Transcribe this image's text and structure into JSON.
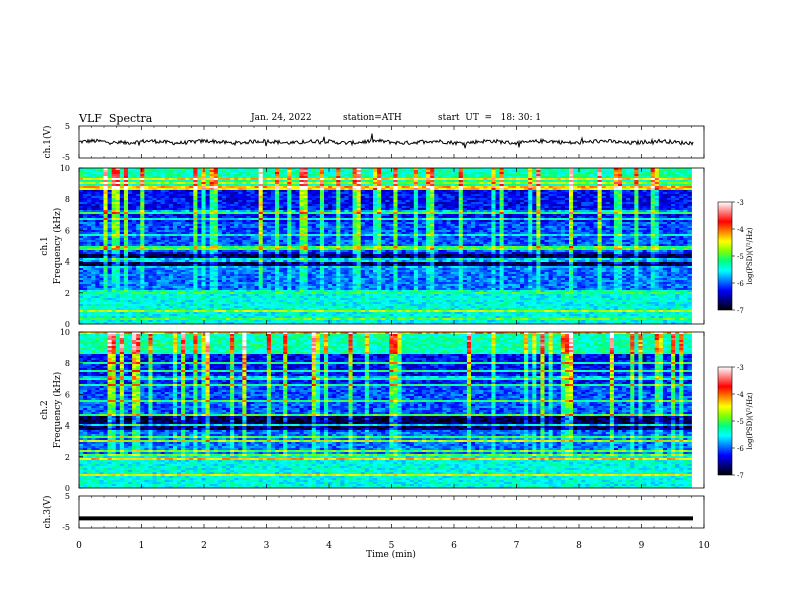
{
  "header": {
    "title": "VLF  Spectra",
    "date": "Jan. 24, 2022",
    "station": "station=ATH",
    "start": "start  UT  =   18: 30: 1"
  },
  "chart_data": [
    {
      "type": "line",
      "name": "ch1-waveform",
      "ylabel": "ch.1(V)",
      "ylim": [
        -5,
        5
      ],
      "yticks": [
        "5",
        "-5"
      ],
      "xlim": [
        0,
        10
      ],
      "baseline": 0,
      "color": "#000000"
    },
    {
      "type": "heatmap",
      "name": "ch1-spectrogram",
      "ylabel_lines": [
        "ch.1",
        "Frequency  (kHz)"
      ],
      "ylim": [
        0,
        10
      ],
      "yticks": [
        "0",
        "2",
        "4",
        "6",
        "8",
        "10"
      ],
      "xlim": [
        0,
        9.8
      ],
      "colorbar": {
        "label": "log(PSD)(V²/Hz)",
        "range": [
          -7,
          -3
        ],
        "ticks": [
          "-3",
          "-4",
          "-5",
          "-6",
          "-7"
        ],
        "colors": [
          "#000000",
          "#000080",
          "#0000ff",
          "#0080ff",
          "#00ffff",
          "#00ff80",
          "#80ff00",
          "#ffff00",
          "#ff8000",
          "#ff0000",
          "#ff8080",
          "#ffffff"
        ]
      }
    },
    {
      "type": "heatmap",
      "name": "ch2-spectrogram",
      "ylabel_lines": [
        "ch.2",
        "Frequency  (kHz)"
      ],
      "ylim": [
        0,
        10
      ],
      "yticks": [
        "0",
        "2",
        "4",
        "6",
        "8",
        "10"
      ],
      "xlim": [
        0,
        9.8
      ],
      "colorbar": {
        "label": "log(PSD)(V²/Hz)",
        "range": [
          -7,
          -3
        ],
        "ticks": [
          "-3",
          "-4",
          "-5",
          "-6",
          "-7"
        ],
        "colors": [
          "#000000",
          "#000080",
          "#0000ff",
          "#0080ff",
          "#00ffff",
          "#00ff80",
          "#80ff00",
          "#ffff00",
          "#ff8000",
          "#ff0000",
          "#ff8080",
          "#ffffff"
        ]
      }
    },
    {
      "type": "line",
      "name": "ch3-waveform",
      "ylabel": "ch.3(V)",
      "ylim": [
        -5,
        5
      ],
      "yticks": [
        "5",
        "-5"
      ],
      "xlim": [
        0,
        10
      ],
      "level": -2,
      "color": "#000000"
    }
  ],
  "xaxis": {
    "label": "Time  (min)",
    "ticks": [
      "0",
      "1",
      "2",
      "3",
      "4",
      "5",
      "6",
      "7",
      "8",
      "9",
      "10"
    ]
  }
}
